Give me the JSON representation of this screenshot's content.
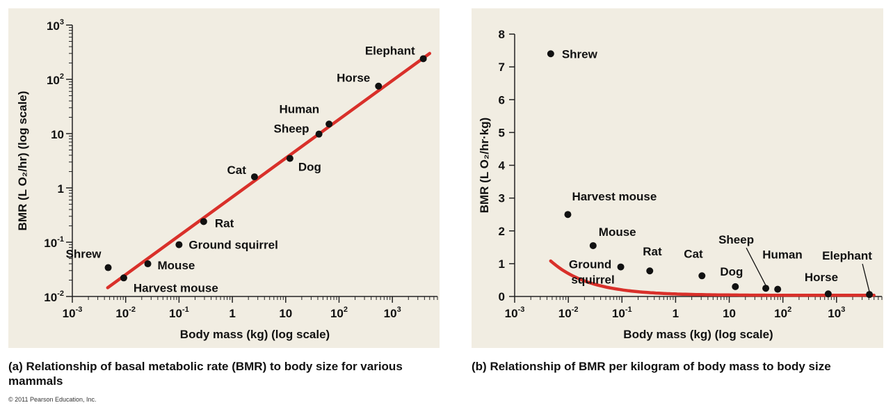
{
  "chart_data": [
    {
      "type": "scatter",
      "panel": "a",
      "caption_letter": "(a)",
      "caption": "Relationship of basal metabolic rate (BMR) to body size for various mammals",
      "xlabel": "Body mass (kg) (log scale)",
      "ylabel": "BMR (L O₂/hr) (log scale)",
      "x_scale": "log",
      "y_scale": "log",
      "xlim": [
        0.001,
        7000
      ],
      "ylim": [
        0.01,
        1000
      ],
      "x_ticks": [
        {
          "value": 0.001,
          "base": "10",
          "exp": "-3"
        },
        {
          "value": 0.01,
          "base": "10",
          "exp": "-2"
        },
        {
          "value": 0.1,
          "base": "10",
          "exp": "-1"
        },
        {
          "value": 1,
          "base": "1",
          "exp": ""
        },
        {
          "value": 10,
          "base": "10",
          "exp": ""
        },
        {
          "value": 100,
          "base": "10",
          "exp": "2"
        },
        {
          "value": 1000,
          "base": "10",
          "exp": "3"
        }
      ],
      "y_ticks": [
        {
          "value": 0.01,
          "base": "10",
          "exp": "-2"
        },
        {
          "value": 0.1,
          "base": "10",
          "exp": "-1"
        },
        {
          "value": 1,
          "base": "1",
          "exp": ""
        },
        {
          "value": 10,
          "base": "10",
          "exp": ""
        },
        {
          "value": 100,
          "base": "10",
          "exp": "2"
        },
        {
          "value": 1000,
          "base": "10",
          "exp": "3"
        }
      ],
      "fit_line": {
        "color": "#d9302a",
        "points": [
          [
            0.0046,
            0.0145
          ],
          [
            5000,
            300
          ]
        ]
      },
      "points": [
        {
          "name": "Shrew",
          "x": 0.0047,
          "y": 0.034
        },
        {
          "name": "Harvest mouse",
          "x": 0.0092,
          "y": 0.022
        },
        {
          "name": "Mouse",
          "x": 0.026,
          "y": 0.04
        },
        {
          "name": "Ground squirrel",
          "x": 0.1,
          "y": 0.09
        },
        {
          "name": "Rat",
          "x": 0.29,
          "y": 0.24
        },
        {
          "name": "Cat",
          "x": 2.6,
          "y": 1.6
        },
        {
          "name": "Dog",
          "x": 12,
          "y": 3.5
        },
        {
          "name": "Sheep",
          "x": 42,
          "y": 9.8
        },
        {
          "name": "Human",
          "x": 65,
          "y": 15
        },
        {
          "name": "Horse",
          "x": 550,
          "y": 75
        },
        {
          "name": "Elephant",
          "x": 3800,
          "y": 240
        }
      ]
    },
    {
      "type": "scatter",
      "panel": "b",
      "caption_letter": "(b)",
      "caption": "Relationship of BMR per kilogram of body mass to body size",
      "xlabel": "Body mass (kg) (log scale)",
      "ylabel": "BMR (L O₂/hr·kg)",
      "x_scale": "log",
      "y_scale": "linear",
      "xlim": [
        0.001,
        7000
      ],
      "ylim": [
        0,
        8
      ],
      "x_ticks": [
        {
          "value": 0.001,
          "base": "10",
          "exp": "-3"
        },
        {
          "value": 0.01,
          "base": "10",
          "exp": "-2"
        },
        {
          "value": 0.1,
          "base": "10",
          "exp": "-1"
        },
        {
          "value": 1,
          "base": "1",
          "exp": ""
        },
        {
          "value": 10,
          "base": "10",
          "exp": ""
        },
        {
          "value": 100,
          "base": "10",
          "exp": "2"
        },
        {
          "value": 1000,
          "base": "10",
          "exp": "3"
        }
      ],
      "y_ticks": [
        0,
        1,
        2,
        3,
        4,
        5,
        6,
        7,
        8
      ],
      "curve": {
        "color": "#d9302a",
        "x_from": 0.0047,
        "x_to": 5000
      },
      "points": [
        {
          "name": "Shrew",
          "x": 0.0047,
          "y": 7.4
        },
        {
          "name": "Harvest mouse",
          "x": 0.0098,
          "y": 2.5
        },
        {
          "name": "Mouse",
          "x": 0.029,
          "y": 1.55
        },
        {
          "name": "Ground squirrel",
          "x": 0.095,
          "y": 0.9
        },
        {
          "name": "Rat",
          "x": 0.33,
          "y": 0.78
        },
        {
          "name": "Cat",
          "x": 3.1,
          "y": 0.63
        },
        {
          "name": "Dog",
          "x": 13,
          "y": 0.3
        },
        {
          "name": "Sheep",
          "x": 48,
          "y": 0.25
        },
        {
          "name": "Human",
          "x": 80,
          "y": 0.22
        },
        {
          "name": "Horse",
          "x": 700,
          "y": 0.08
        },
        {
          "name": "Elephant",
          "x": 4100,
          "y": 0.06
        }
      ]
    }
  ],
  "copyright": "© 2011 Pearson Education, Inc."
}
